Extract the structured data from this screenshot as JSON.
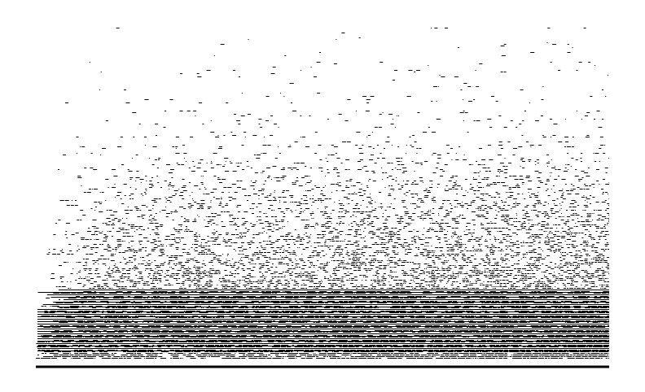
{
  "graphic": {
    "kind": "dot-pattern",
    "ink_color": "#000000",
    "background_color": "#ffffff",
    "baseline": true
  }
}
